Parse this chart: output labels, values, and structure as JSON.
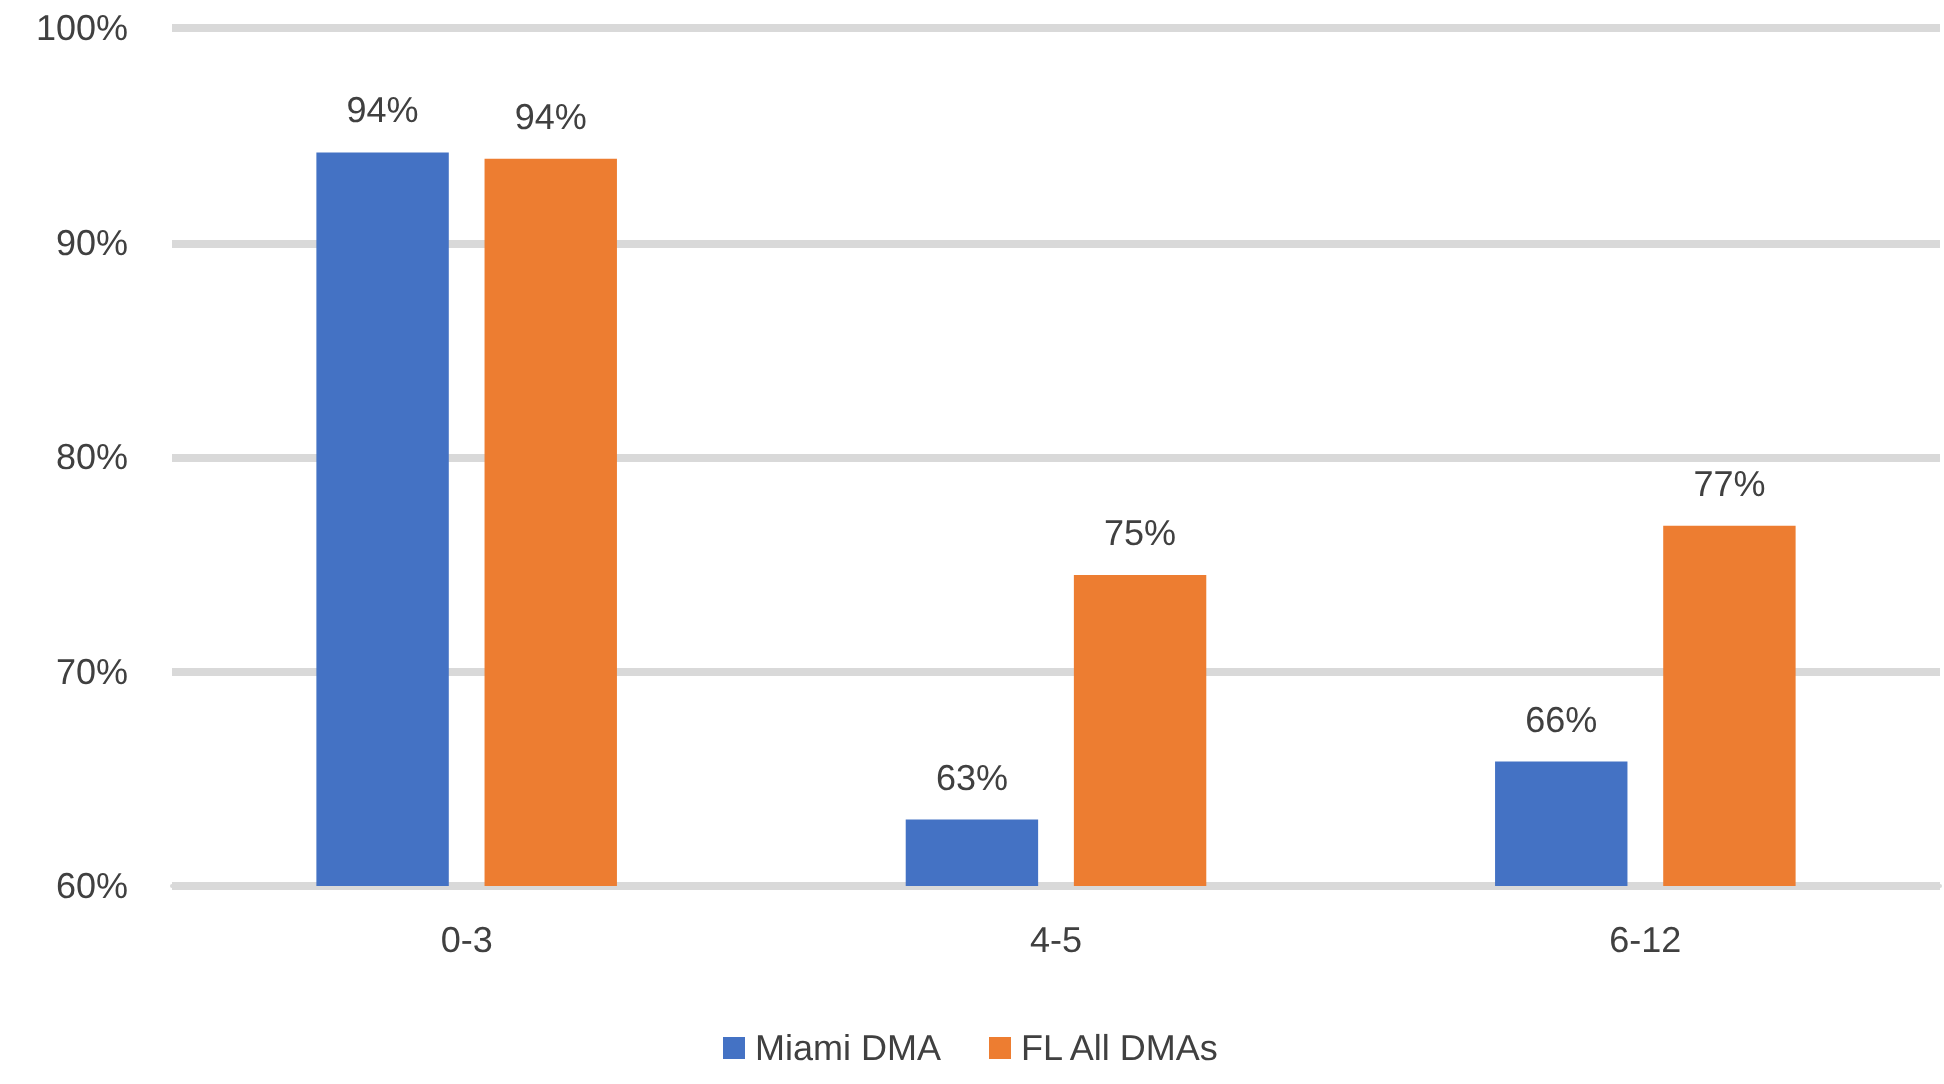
{
  "chart_data": {
    "type": "bar",
    "categories": [
      "0-3",
      "4-5",
      "6-12"
    ],
    "series": [
      {
        "name": "Miami DMA",
        "color": "#4472c4",
        "values": [
          94.2,
          63.1,
          65.8
        ],
        "value_labels": [
          "94%",
          "63%",
          "66%"
        ]
      },
      {
        "name": "FL All DMAs",
        "color": "#ed7d31",
        "values": [
          93.9,
          74.5,
          76.8
        ],
        "value_labels": [
          "94%",
          "75%",
          "77%"
        ]
      }
    ],
    "ylim": [
      60,
      100
    ],
    "yticks": [
      {
        "value": 60,
        "label": "60%"
      },
      {
        "value": 70,
        "label": "70%"
      },
      {
        "value": 80,
        "label": "80%"
      },
      {
        "value": 90,
        "label": "90%"
      },
      {
        "value": 100,
        "label": "100%"
      }
    ],
    "grid": true,
    "legend": "bottom"
  }
}
